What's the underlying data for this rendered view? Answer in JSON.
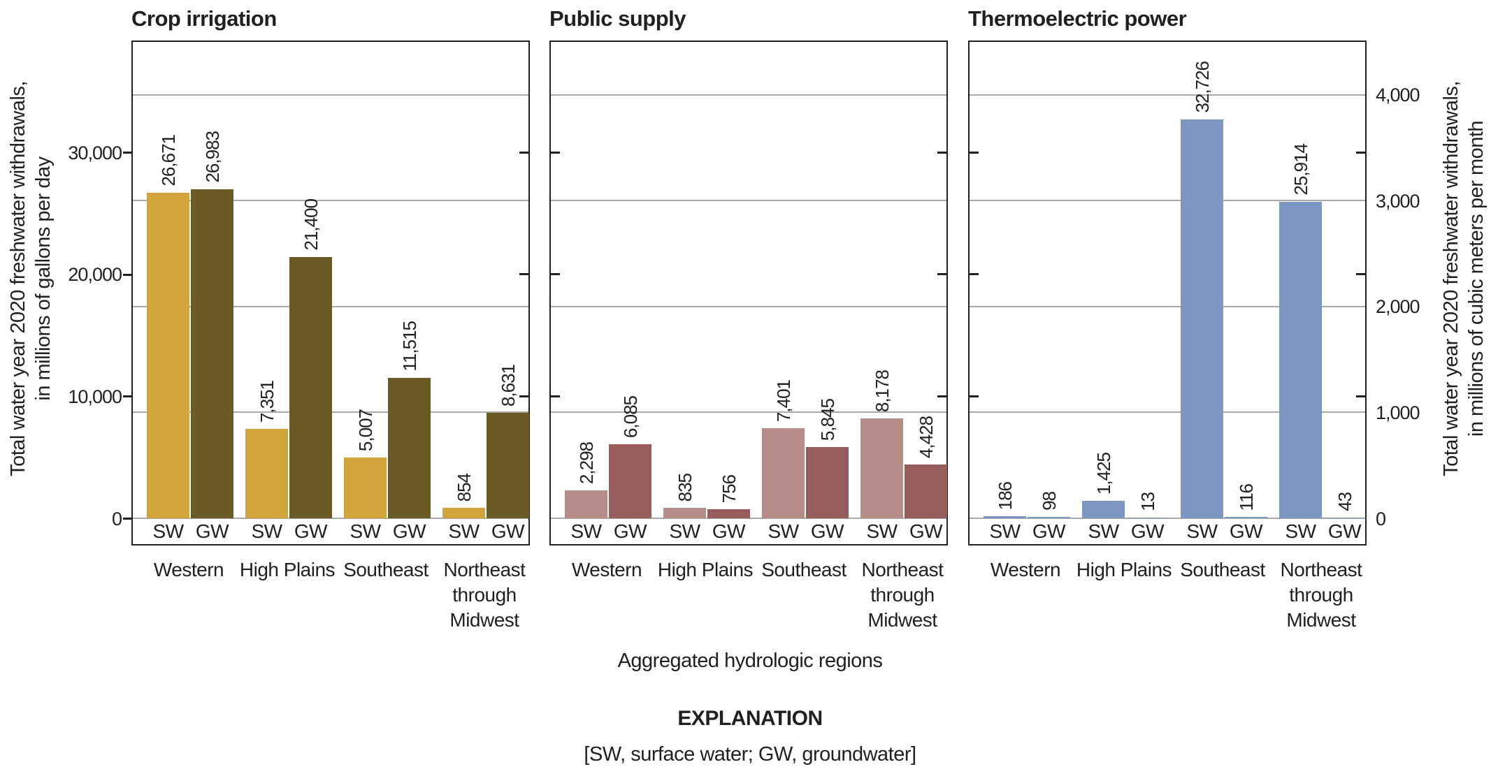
{
  "chart_data": {
    "type": "bar",
    "categories": [
      "Western",
      "High Plains",
      "Southeast",
      "Northeast through Midwest"
    ],
    "subcategories": [
      "SW",
      "GW"
    ],
    "panels": [
      {
        "title": "Crop irrigation",
        "colors": {
          "SW": "#d2a43c",
          "GW": "#6a5a25"
        },
        "series": [
          {
            "name": "SW",
            "values": [
              26671,
              7351,
              5007,
              854
            ]
          },
          {
            "name": "GW",
            "values": [
              26983,
              21400,
              11515,
              8631
            ]
          }
        ]
      },
      {
        "title": "Public supply",
        "colors": {
          "SW": "#b88c88",
          "GW": "#975d5c"
        },
        "series": [
          {
            "name": "SW",
            "values": [
              2298,
              835,
              7401,
              8178
            ]
          },
          {
            "name": "GW",
            "values": [
              6085,
              756,
              5845,
              4428
            ]
          }
        ]
      },
      {
        "title": "Thermoelectric power",
        "colors": {
          "SW": "#7d97c3",
          "GW": "#7d97c3"
        },
        "series": [
          {
            "name": "SW",
            "values": [
              186,
              1425,
              32726,
              25914
            ]
          },
          {
            "name": "GW",
            "values": [
              98,
              13,
              116,
              43
            ]
          }
        ]
      }
    ],
    "left_axis": {
      "title_lines": [
        "Total water year 2020 freshwater withdrawals,",
        "in millions of gallons per day"
      ],
      "ticks": [
        0,
        10000,
        20000,
        30000
      ],
      "max_mgd": 39056
    },
    "right_axis": {
      "title_lines": [
        "Total water year 2020 freshwater withdrawals,",
        "in millions of cubic meters per month"
      ],
      "ticks": [
        0,
        1000,
        2000,
        3000,
        4000
      ],
      "gridline_ticks": [
        1000,
        2000,
        3000,
        4000
      ],
      "max": 4500
    },
    "xlabel": "Aggregated hydrologic regions",
    "explanation": {
      "title": "EXPLANATION",
      "note": "[SW, surface water; GW, groundwater]"
    },
    "style_colors": {
      "grid": "#a9a9a9",
      "frame": "#202020",
      "text": "#231f20"
    }
  }
}
